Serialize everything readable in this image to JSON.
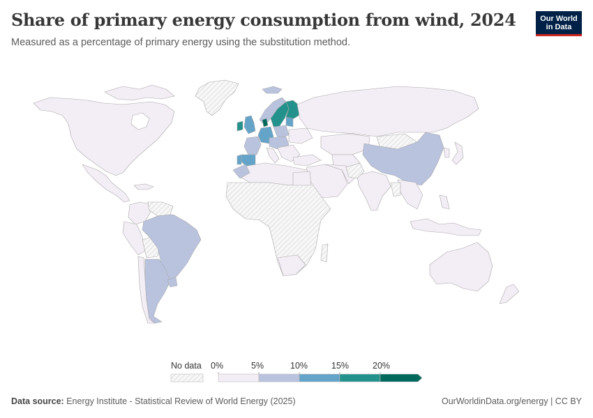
{
  "header": {
    "title": "Share of primary energy consumption from wind, 2024",
    "subtitle": "Measured as a percentage of primary energy using the substitution method.",
    "logo_line1": "Our World",
    "logo_line2": "in Data"
  },
  "legend": {
    "no_data_label": "No data",
    "bins": [
      "0%",
      "5%",
      "10%",
      "15%",
      "20%"
    ],
    "colors": {
      "no_data": "#eeeeee",
      "bin_0_5": "#f3edf5",
      "bin_5_10": "#b9c3de",
      "bin_10_15": "#64a4c9",
      "bin_15_20": "#23918c",
      "bin_20_plus": "#00695c"
    }
  },
  "footer": {
    "source_label": "Data source:",
    "source_text": "Energy Institute - Statistical Review of World Energy (2025)",
    "credit": "OurWorldinData.org/energy | CC BY"
  }
}
